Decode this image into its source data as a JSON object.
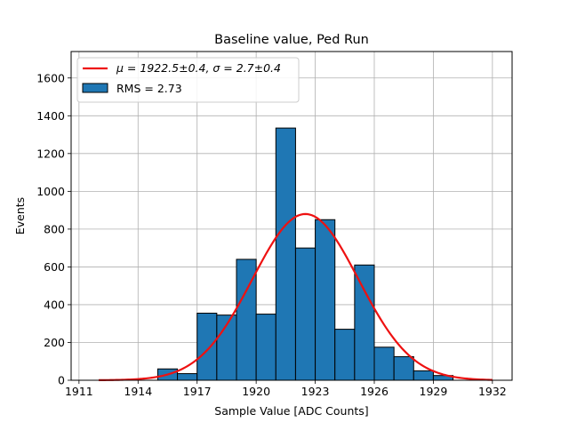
{
  "chart_data": {
    "type": "bar",
    "title": "Baseline value, Ped Run",
    "xlabel": "Sample Value [ADC Counts]",
    "ylabel": "Events",
    "xlim": [
      1910.6,
      1933.0
    ],
    "ylim": [
      0,
      1740
    ],
    "xticks": [
      1911,
      1914,
      1917,
      1920,
      1923,
      1926,
      1929,
      1932
    ],
    "yticks": [
      0,
      200,
      400,
      600,
      800,
      1000,
      1200,
      1400,
      1600
    ],
    "grid": true,
    "legend_position": "upper-left",
    "bin_width": 1,
    "bins": [
      {
        "x": 1915.5,
        "value": 60
      },
      {
        "x": 1916.5,
        "value": 35
      },
      {
        "x": 1917.5,
        "value": 355
      },
      {
        "x": 1918.5,
        "value": 345
      },
      {
        "x": 1919.5,
        "value": 640
      },
      {
        "x": 1920.5,
        "value": 350
      },
      {
        "x": 1921.5,
        "value": 1335
      },
      {
        "x": 1922.5,
        "value": 700
      },
      {
        "x": 1923.5,
        "value": 850
      },
      {
        "x": 1924.5,
        "value": 270
      },
      {
        "x": 1925.5,
        "value": 610
      },
      {
        "x": 1926.5,
        "value": 175
      },
      {
        "x": 1927.5,
        "value": 125
      },
      {
        "x": 1928.5,
        "value": 50
      },
      {
        "x": 1929.5,
        "value": 25
      }
    ],
    "fit": {
      "mu": 1922.5,
      "sigma": 2.7,
      "amplitude": 880,
      "x_range": [
        1912,
        1932
      ],
      "label": "μ = 1922.5±0.4, σ = 2.7±0.4",
      "color": "#ee1111"
    },
    "histogram_label": "RMS = 2.73",
    "bar_color": "#1f77b4"
  }
}
